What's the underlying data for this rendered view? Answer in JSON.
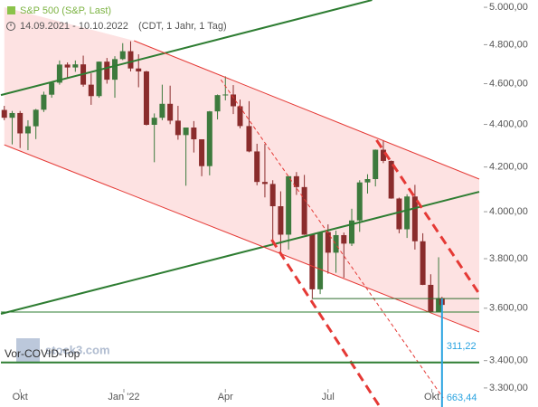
{
  "chart_data": {
    "type": "candlestick",
    "title": "S&P 500 (S&P, Last)",
    "subtitle": "14.09.2021 - 10.10.2022",
    "note": "(CDT, 1 Jahr, 1 Tag)",
    "watermark": "stock3.com",
    "log_scale": true,
    "grid": false,
    "up_color": "#3d7a3d",
    "down_color": "#8a2c2c",
    "channel_fill": "#fde2e2",
    "xlim": [
      "2021-09-14",
      "2022-11-12"
    ],
    "ylim": [
      3232,
      5040
    ],
    "xticks": [
      {
        "value": "2021-10-01",
        "label": "Okt"
      },
      {
        "value": "2022-01-01",
        "label": "Jan '22"
      },
      {
        "value": "2022-04-01",
        "label": "Apr"
      },
      {
        "value": "2022-07-01",
        "label": "Jul"
      },
      {
        "value": "2022-10-01",
        "label": "Okt"
      }
    ],
    "yticks": [
      {
        "value": 3300,
        "label": "3.300,00"
      },
      {
        "value": 3400,
        "label": "3.400,00"
      },
      {
        "value": 3600,
        "label": "3.600,00"
      },
      {
        "value": 3800,
        "label": "3.800,00"
      },
      {
        "value": 4000,
        "label": "4.000,00"
      },
      {
        "value": 4200,
        "label": "4.200,00"
      },
      {
        "value": 4400,
        "label": "4.400,00"
      },
      {
        "value": 4600,
        "label": "4.600,00"
      },
      {
        "value": 4800,
        "label": "4.800,00"
      },
      {
        "value": 5000,
        "label": "5.000,00"
      }
    ],
    "x": [
      "2021-09-17",
      "2021-09-24",
      "2021-10-01",
      "2021-10-08",
      "2021-10-15",
      "2021-10-22",
      "2021-10-29",
      "2021-11-05",
      "2021-11-12",
      "2021-11-19",
      "2021-11-26",
      "2021-12-03",
      "2021-12-10",
      "2021-12-17",
      "2021-12-24",
      "2021-12-31",
      "2022-01-07",
      "2022-01-14",
      "2022-01-21",
      "2022-01-28",
      "2022-02-04",
      "2022-02-11",
      "2022-02-18",
      "2022-02-25",
      "2022-03-04",
      "2022-03-11",
      "2022-03-18",
      "2022-03-25",
      "2022-04-01",
      "2022-04-08",
      "2022-04-14",
      "2022-04-22",
      "2022-04-29",
      "2022-05-06",
      "2022-05-13",
      "2022-05-20",
      "2022-05-27",
      "2022-06-03",
      "2022-06-10",
      "2022-06-17",
      "2022-06-24",
      "2022-07-01",
      "2022-07-08",
      "2022-07-15",
      "2022-07-22",
      "2022-07-29",
      "2022-08-05",
      "2022-08-12",
      "2022-08-19",
      "2022-08-26",
      "2022-09-02",
      "2022-09-09",
      "2022-09-16",
      "2022-09-23",
      "2022-09-30",
      "2022-10-07",
      "2022-10-10"
    ],
    "open": [
      4470,
      4432,
      4455,
      4357,
      4391,
      4471,
      4545,
      4605,
      4697,
      4682,
      4698,
      4595,
      4538,
      4712,
      4620,
      4725,
      4766,
      4677,
      4662,
      4398,
      4432,
      4500,
      4418,
      4349,
      4385,
      4329,
      4204,
      4463,
      4543,
      4546,
      4488,
      4392,
      4272,
      4132,
      4123,
      4024,
      3901,
      4158,
      4109,
      3901,
      3675,
      3912,
      3825,
      3899,
      3863,
      3962,
      4130,
      4145,
      4280,
      4228,
      4058,
      3924,
      4067,
      3873,
      3693,
      3586,
      3640
    ],
    "high": [
      4490,
      4465,
      4465,
      4420,
      4475,
      4560,
      4610,
      4718,
      4708,
      4718,
      4743,
      4652,
      4713,
      4731,
      4740,
      4808,
      4818,
      4750,
      4665,
      4453,
      4595,
      4590,
      4490,
      4385,
      4416,
      4329,
      4465,
      4546,
      4637,
      4593,
      4521,
      4513,
      4308,
      4307,
      4140,
      4090,
      4158,
      4177,
      4164,
      3901,
      3913,
      3945,
      3918,
      3910,
      4013,
      4140,
      4167,
      4281,
      4325,
      4230,
      4062,
      4077,
      4119,
      3907,
      3736,
      3806,
      3645
    ],
    "low": [
      4420,
      4305,
      4288,
      4278,
      4330,
      4460,
      4530,
      4595,
      4630,
      4660,
      4585,
      4495,
      4530,
      4600,
      4530,
      4720,
      4662,
      4582,
      4395,
      4222,
      4420,
      4401,
      4327,
      4115,
      4267,
      4158,
      4162,
      4424,
      4517,
      4450,
      4381,
      4268,
      4117,
      4063,
      3858,
      3811,
      3838,
      4074,
      3900,
      3637,
      3656,
      3738,
      3742,
      3722,
      3853,
      3913,
      4080,
      4112,
      4218,
      4057,
      3907,
      3887,
      3838,
      3692,
      3584,
      3584,
      3590
    ],
    "close": [
      4432,
      4455,
      4357,
      4391,
      4471,
      4545,
      4605,
      4697,
      4682,
      4698,
      4595,
      4538,
      4712,
      4620,
      4725,
      4766,
      4677,
      4662,
      4398,
      4432,
      4500,
      4418,
      4349,
      4385,
      4329,
      4204,
      4463,
      4543,
      4546,
      4488,
      4392,
      4272,
      4132,
      4123,
      4024,
      3901,
      4158,
      4109,
      3901,
      3675,
      3912,
      3825,
      3899,
      3863,
      3962,
      4130,
      4145,
      4280,
      4228,
      4058,
      3924,
      4067,
      3873,
      3693,
      3586,
      3640,
      3613
    ],
    "lines": [
      {
        "color": "#2e7d32",
        "style": "solid",
        "width": 2,
        "x": [
          "2021-09-14",
          "2022-08-09"
        ],
        "y": [
          4543,
          5040
        ]
      },
      {
        "color": "#2e7d32",
        "style": "solid",
        "width": 2,
        "x": [
          "2021-09-14",
          "2022-11-12"
        ],
        "y": [
          3578,
          4088
        ]
      },
      {
        "color": "#e53935",
        "style": "solid",
        "width": 1,
        "x": [
          "2022-01-10",
          "2022-11-12"
        ],
        "y": [
          4821,
          4145
        ]
      },
      {
        "color": "#e53935",
        "style": "solid",
        "width": 1,
        "x": [
          "2021-09-17",
          "2022-11-12"
        ],
        "y": [
          4303,
          3508
        ]
      },
      {
        "color": "#e53935",
        "style": "dashed",
        "width": 1,
        "x": [
          "2022-03-28",
          "2022-10-11"
        ],
        "y": [
          4620,
          3264
        ]
      },
      {
        "color": "#e53935",
        "style": "dashed",
        "width": 3,
        "x": [
          "2022-05-12",
          "2022-08-16"
        ],
        "y": [
          3880,
          3232
        ]
      },
      {
        "color": "#e53935",
        "style": "dashed",
        "width": 3,
        "x": [
          "2022-08-13",
          "2022-11-12"
        ],
        "y": [
          4325,
          3657
        ]
      },
      {
        "color": "#2e7d32",
        "style": "solid",
        "width": 1,
        "x": [
          "2021-09-14",
          "2022-11-12"
        ],
        "y": [
          3585,
          3585
        ]
      },
      {
        "color": "#2e7d32",
        "style": "solid",
        "width": 2,
        "x": [
          "2021-09-14",
          "2022-11-12"
        ],
        "y": [
          3393,
          3393
        ],
        "label": "Vor-COVID-Top"
      },
      {
        "color": "#2e6b2e",
        "style": "solid",
        "width": 1,
        "x": [
          "2022-06-17",
          "2022-11-12"
        ],
        "y": [
          3638,
          3638
        ]
      }
    ],
    "measure": {
      "color": "#29a3e0",
      "x": "2022-10-10",
      "y": [
        3638,
        3232
      ],
      "labels": [
        "311,22",
        "663,44"
      ]
    }
  }
}
